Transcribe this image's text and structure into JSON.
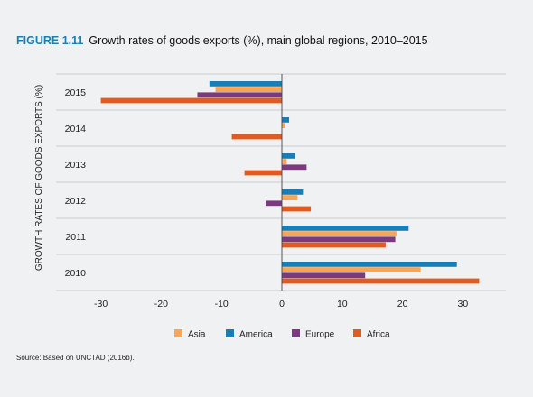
{
  "figure": {
    "number": "FIGURE 1.11",
    "title": "Growth rates of goods exports (%), main global regions, 2010–2015",
    "source": "Source: Based on UNCTAD (2016b)."
  },
  "chart_data": {
    "type": "bar",
    "orientation": "horizontal",
    "categories": [
      "2015",
      "2014",
      "2013",
      "2012",
      "2011",
      "2010"
    ],
    "series": [
      {
        "name": "America",
        "color": "#1a7eb5",
        "values": [
          -12,
          1.2,
          2.2,
          3.5,
          21,
          29
        ]
      },
      {
        "name": "Asia",
        "color": "#f5a65b",
        "values": [
          -11,
          0.6,
          0.8,
          2.6,
          19,
          23
        ]
      },
      {
        "name": "Europe",
        "color": "#7b3a7e",
        "values": [
          -14,
          0,
          4.1,
          -2.7,
          18.8,
          13.8
        ]
      },
      {
        "name": "Africa",
        "color": "#e15a1f",
        "values": [
          -30,
          -8.3,
          -6.2,
          4.8,
          17.2,
          32.7
        ]
      }
    ],
    "xlim": [
      -37,
      37
    ],
    "xticks": [
      "-30",
      "-20",
      "-10",
      "0",
      "10",
      "20",
      "30"
    ],
    "ylabel": "GROWTH RATES OF GOODS EXPORTS (%)",
    "xlabel": "",
    "legend": {
      "position": "bottom",
      "order": [
        "Asia",
        "America",
        "Europe",
        "Africa"
      ]
    },
    "grid": "horizontal"
  }
}
